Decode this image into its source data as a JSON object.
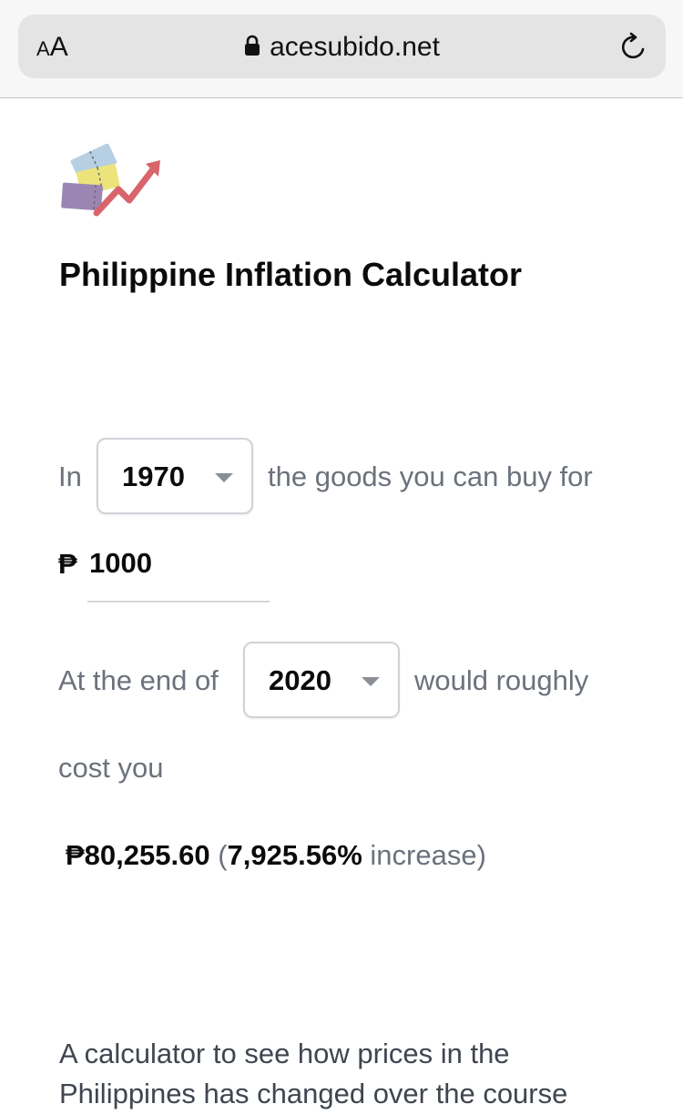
{
  "browser": {
    "aa_small": "A",
    "aa_large": "A",
    "url": "acesubido.net"
  },
  "page": {
    "title": "Philippine Inflation Calculator"
  },
  "calculator": {
    "in_label": "In",
    "start_year": "1970",
    "goods_text": "the goods you can buy for",
    "currency_symbol": "₱",
    "amount": "1000",
    "end_label": "At the end of",
    "end_year": "2020",
    "would_text": "would roughly",
    "cost_text": "cost you",
    "result_value": "₱80,255.60",
    "open_paren": "(",
    "percent": "7,925.56%",
    "increase_text": "increase)"
  },
  "description": "A calculator to see how prices in the Philippines has changed over the course",
  "colors": {
    "muted_text": "#6b727c",
    "strong_text": "#0b0b0b",
    "logo_blue": "#b7cfe3",
    "logo_yellow": "#ece47b",
    "logo_purple": "#9b86b3",
    "logo_arrow": "#d9646b"
  },
  "icons": {
    "lock": "lock-icon",
    "reload": "reload-icon",
    "logo": "inflation-logo-icon",
    "caret": "chevron-down-icon"
  }
}
